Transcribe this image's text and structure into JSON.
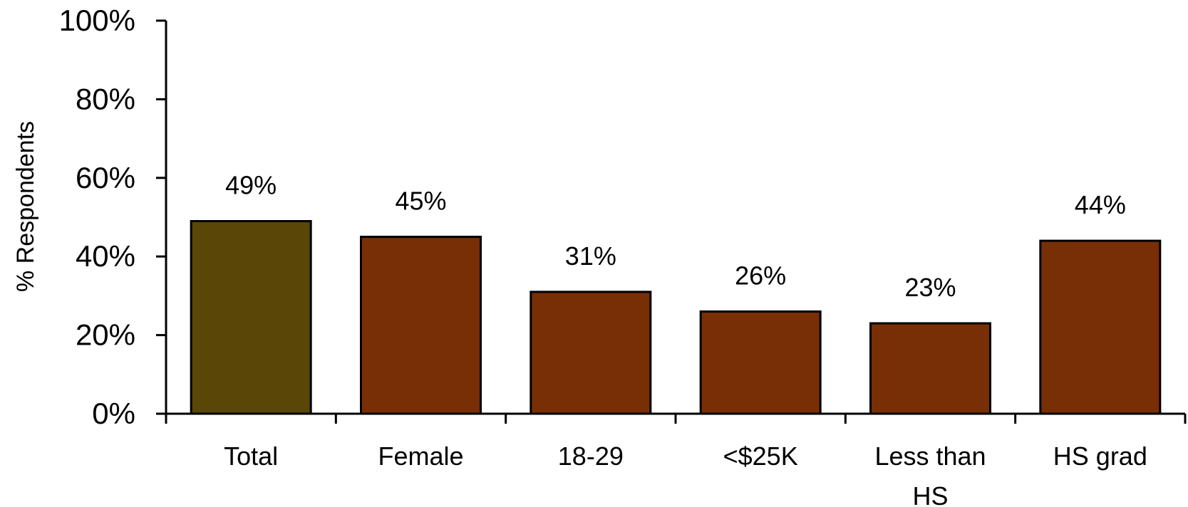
{
  "chart_data": {
    "type": "bar",
    "title": "",
    "xlabel": "",
    "ylabel": "% Respondents",
    "ylim": [
      0,
      100
    ],
    "yticks": [
      "0%",
      "20%",
      "40%",
      "60%",
      "80%",
      "100%"
    ],
    "grid": false,
    "legend": "none",
    "categories": [
      [
        "Total"
      ],
      [
        "Female"
      ],
      [
        "18-29"
      ],
      [
        "<$25K"
      ],
      [
        "Less than",
        "HS"
      ],
      [
        "HS grad"
      ]
    ],
    "values": [
      49,
      45,
      31,
      26,
      23,
      44
    ],
    "data_labels": [
      "49%",
      "45%",
      "31%",
      "26%",
      "23%",
      "44%"
    ],
    "colors": [
      "#5a4607",
      "#782f06",
      "#782f06",
      "#782f06",
      "#782f06",
      "#782f06"
    ]
  }
}
